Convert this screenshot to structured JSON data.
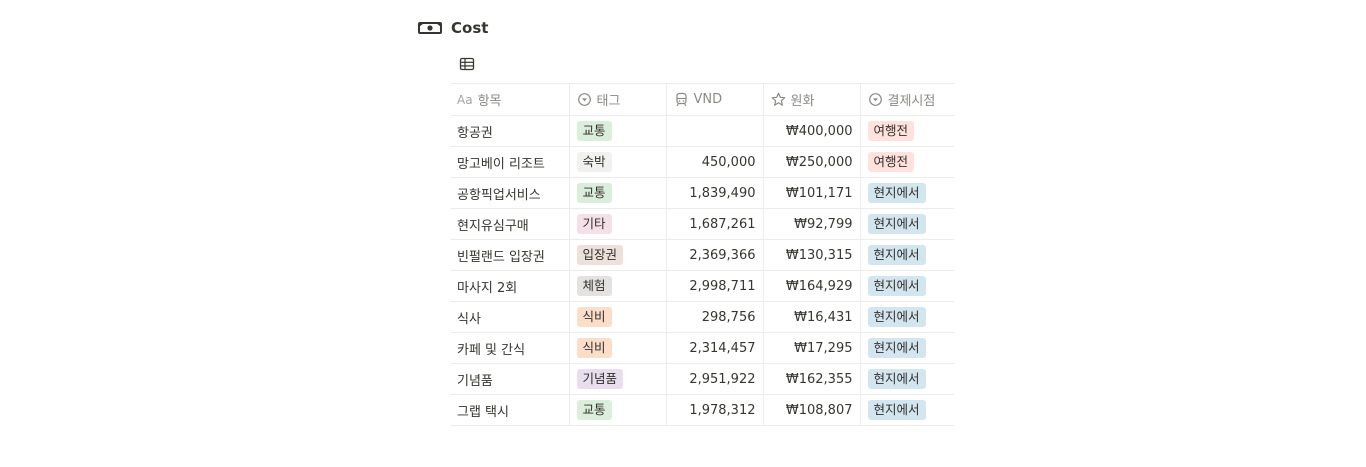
{
  "database": {
    "title": "Cost",
    "icon": "money-icon"
  },
  "view": {
    "icon": "table-icon"
  },
  "columns": {
    "name": {
      "prefix": "Aa",
      "label": "항목"
    },
    "tag": {
      "label": "태그",
      "icon": "select-icon"
    },
    "vnd": {
      "label": "VND",
      "icon": "train-icon"
    },
    "krw": {
      "label": "원화",
      "icon": "star-icon"
    },
    "payment": {
      "label": "결제시점",
      "icon": "select-icon"
    }
  },
  "tag_colors": {
    "교통": "#dbeddb",
    "숙박": "#f1f1ef",
    "기타": "#f5e0e9",
    "입장권": "#eee0da",
    "체험": "#e3e2e0",
    "식비": "#fadec9",
    "기념품": "#e8deee",
    "여행전": "#ffe2dd",
    "현지에서": "#d3e5ef"
  },
  "rows": [
    {
      "name": "항공권",
      "tag": "교통",
      "vnd": "",
      "krw": "₩400,000",
      "payment": "여행전"
    },
    {
      "name": "망고베이 리조트",
      "tag": "숙박",
      "vnd": "450,000",
      "krw": "₩250,000",
      "payment": "여행전"
    },
    {
      "name": "공항픽업서비스",
      "tag": "교통",
      "vnd": "1,839,490",
      "krw": "₩101,171",
      "payment": "현지에서"
    },
    {
      "name": "현지유심구매",
      "tag": "기타",
      "vnd": "1,687,261",
      "krw": "₩92,799",
      "payment": "현지에서"
    },
    {
      "name": "빈펄랜드 입장권",
      "tag": "입장권",
      "vnd": "2,369,366",
      "krw": "₩130,315",
      "payment": "현지에서"
    },
    {
      "name": "마사지 2회",
      "tag": "체험",
      "vnd": "2,998,711",
      "krw": "₩164,929",
      "payment": "현지에서"
    },
    {
      "name": "식사",
      "tag": "식비",
      "vnd": "298,756",
      "krw": "₩16,431",
      "payment": "현지에서"
    },
    {
      "name": "카페 및 간식",
      "tag": "식비",
      "vnd": "2,314,457",
      "krw": "₩17,295",
      "payment": "현지에서"
    },
    {
      "name": "기념품",
      "tag": "기념품",
      "vnd": "2,951,922",
      "krw": "₩162,355",
      "payment": "현지에서"
    },
    {
      "name": "그랩 택시",
      "tag": "교통",
      "vnd": "1,978,312",
      "krw": "₩108,807",
      "payment": "현지에서"
    }
  ]
}
